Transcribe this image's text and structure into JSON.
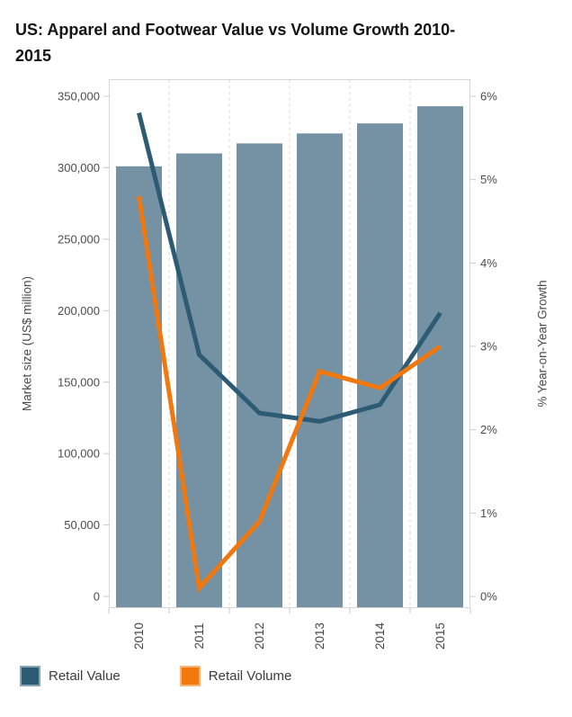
{
  "title": "US: Apparel and Footwear Value vs Volume Growth 2010-2015",
  "chart_data": {
    "type": "bar+line",
    "categories": [
      "2010",
      "2011",
      "2012",
      "2013",
      "2014",
      "2015"
    ],
    "bar_series": {
      "name": "Market size",
      "axis": "left",
      "color": "#7492a4",
      "values": [
        301000,
        310000,
        317000,
        324000,
        331000,
        343000
      ]
    },
    "line_series": [
      {
        "name": "Retail Value",
        "axis": "right",
        "color": "#2e5b74",
        "values": [
          5.8,
          2.9,
          2.2,
          2.1,
          2.3,
          3.4
        ]
      },
      {
        "name": "Retail Volume",
        "axis": "right",
        "color": "#f1770f",
        "values": [
          4.8,
          0.1,
          0.9,
          2.7,
          2.5,
          3.0
        ]
      }
    ],
    "left_axis": {
      "label": "Market size (US$ million)",
      "min": 0,
      "max": 350000,
      "step": 50000,
      "tick_labels": [
        "0",
        "50,000",
        "100,000",
        "150,000",
        "200,000",
        "250,000",
        "300,000",
        "350,000"
      ]
    },
    "right_axis": {
      "label": "% Year-on-Year Growth",
      "min": 0,
      "max": 6,
      "step": 1,
      "tick_labels": [
        "0%",
        "1%",
        "2%",
        "3%",
        "4%",
        "5%",
        "6%"
      ]
    },
    "legend": [
      {
        "label": "Retail Value",
        "color": "#2e5b74"
      },
      {
        "label": "Retail Volume",
        "color": "#f1770f"
      }
    ],
    "gridlines": {
      "vertical": "dashed",
      "horizontal": "none"
    }
  }
}
